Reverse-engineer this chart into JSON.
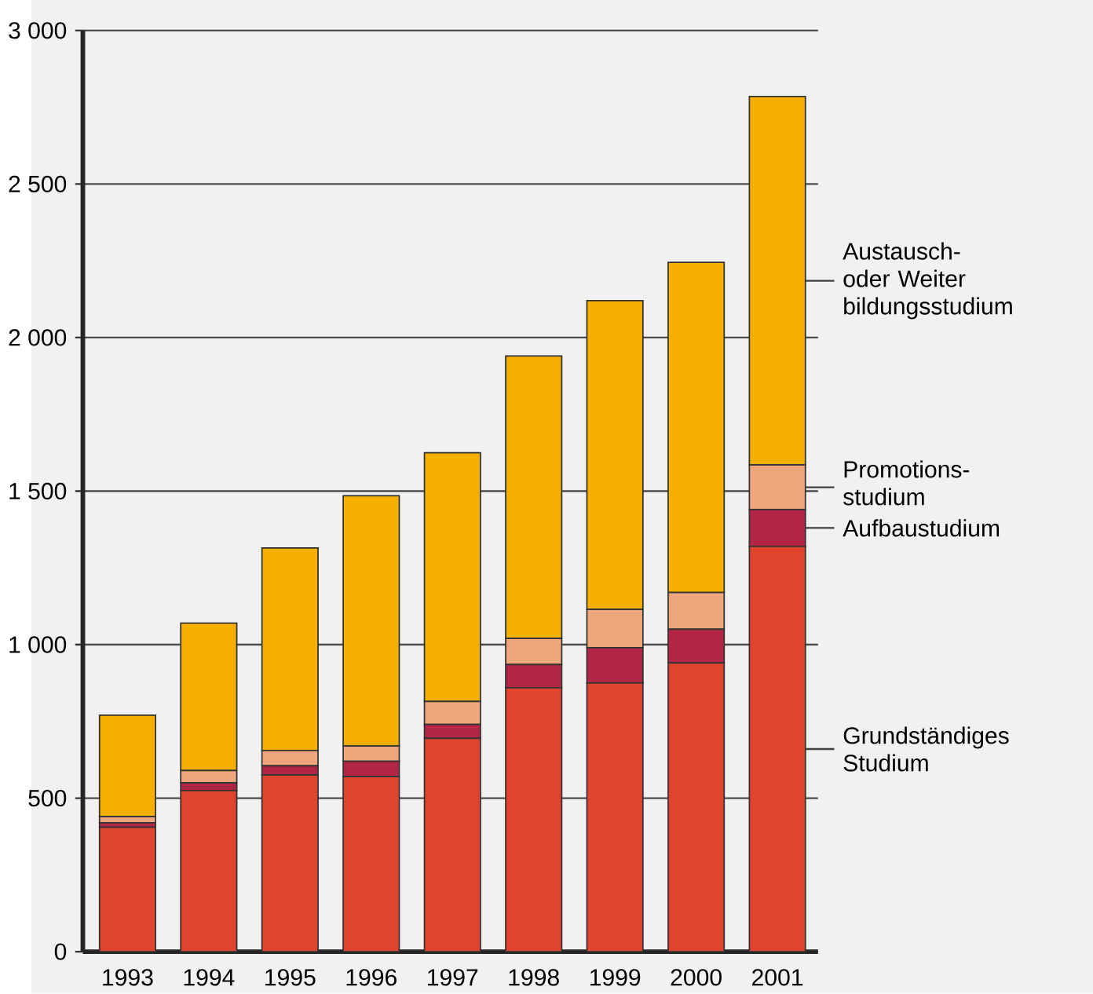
{
  "chart_data": {
    "type": "bar",
    "stacked": true,
    "categories": [
      "1993",
      "1994",
      "1995",
      "1996",
      "1997",
      "1998",
      "1999",
      "2000",
      "2001"
    ],
    "series": [
      {
        "name": "Grundständiges Studium",
        "color": "#e0432e",
        "values": [
          405,
          525,
          575,
          570,
          695,
          860,
          875,
          940,
          1320
        ]
      },
      {
        "name": "Aufbaustudium",
        "color": "#b22545",
        "values": [
          15,
          25,
          30,
          50,
          45,
          75,
          115,
          110,
          120
        ]
      },
      {
        "name": "Promotions- studium",
        "color": "#f0a67c",
        "values": [
          20,
          40,
          50,
          50,
          75,
          85,
          125,
          120,
          145
        ]
      },
      {
        "name": "Austausch- oder Weiter bildungsstudium",
        "color": "#f4af00",
        "values": [
          330,
          480,
          660,
          815,
          810,
          920,
          1005,
          1075,
          1200
        ]
      }
    ],
    "ylim": [
      0,
      3000
    ],
    "yticks": [
      0,
      500,
      {
        "value": 1000,
        "label": "1 000"
      },
      {
        "value": 1500,
        "label": "1 500"
      },
      {
        "value": 2000,
        "label": "2 000"
      },
      {
        "value": 2500,
        "label": "2 500"
      },
      {
        "value": 3000,
        "label": "3 000"
      }
    ],
    "grid": "y",
    "legend": "right"
  }
}
